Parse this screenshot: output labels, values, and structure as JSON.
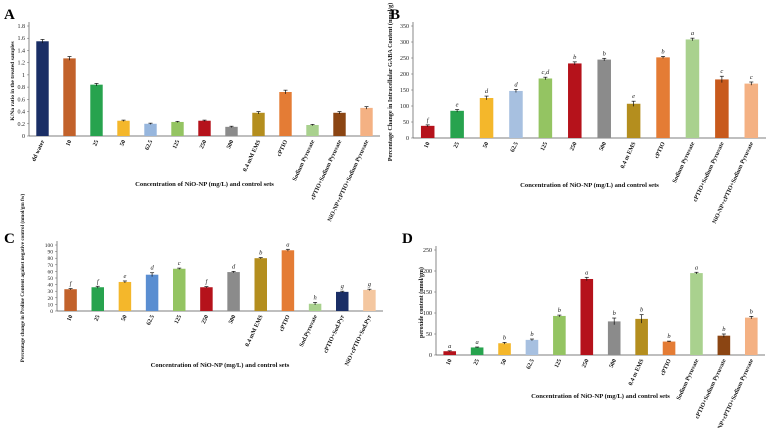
{
  "figure_labels": [
    "A",
    "B",
    "C",
    "D"
  ],
  "chart_data": [
    {
      "panel": "A",
      "type": "bar",
      "title": "",
      "xlabel": "Concentration of NiO-NP (mg/L) and control sets",
      "ylabel": "K/Na ratio in the treated samples",
      "ylim": [
        0,
        1.8
      ],
      "yticks": [
        0,
        0.2,
        0.4,
        0.6,
        0.8,
        1,
        1.2,
        1.4,
        1.6,
        1.8
      ],
      "ytick_labels": [
        "0",
        "0.2",
        "0.4",
        "0.6",
        "0.8",
        "1",
        "1.2",
        "1.4",
        "1.6",
        "1.8"
      ],
      "categories": [
        "dd water",
        "10",
        "25",
        "50",
        "62.5",
        "125",
        "250",
        "500",
        "0.4 mM EMS",
        "cPTIO",
        "Sodium Pyruvate",
        "cPTIO+Sodium Pyruvate",
        "NiO-NP+cPTIO+Sodium Pyruvate"
      ],
      "values": [
        1.55,
        1.27,
        0.84,
        0.25,
        0.2,
        0.23,
        0.25,
        0.15,
        0.38,
        0.72,
        0.18,
        0.38,
        0.46
      ],
      "errors": [
        0.03,
        0.03,
        0.02,
        0.01,
        0.01,
        0.01,
        0.01,
        0.01,
        0.02,
        0.03,
        0.01,
        0.02,
        0.02
      ],
      "letters": [
        "",
        "",
        "",
        "",
        "",
        "",
        "",
        "",
        "",
        "",
        "",
        "",
        ""
      ],
      "colors": [
        "#1a2e66",
        "#c2622b",
        "#27a34e",
        "#f4b72b",
        "#97b6dd",
        "#94c462",
        "#b5121b",
        "#8b8b8b",
        "#b48e1e",
        "#e47c35",
        "#a9d18e",
        "#8b4513",
        "#f4b183"
      ]
    },
    {
      "panel": "B",
      "type": "bar",
      "title": "",
      "xlabel": "Concentration of NiO-NP (mg/L) and control sets",
      "ylabel": "Percentage Change in Intracellular GABA Content (nmol/g)",
      "ylim": [
        0,
        350
      ],
      "yticks": [
        0,
        50,
        100,
        150,
        200,
        250,
        300,
        350
      ],
      "ytick_labels": [
        "0",
        "50",
        "100",
        "150",
        "200",
        "250",
        "300",
        "350"
      ],
      "categories": [
        "10",
        "25",
        "50",
        "62.5",
        "125",
        "250",
        "500",
        "0.4 m EMS",
        "cPTIO",
        "Sodium Pyruvate",
        "cPTIO+Sodium Pyruvate",
        "NiO-NP+cPTIO+Sodium Pyruvate"
      ],
      "values": [
        38,
        85,
        125,
        147,
        186,
        233,
        245,
        107,
        252,
        308,
        183,
        170
      ],
      "errors": [
        3,
        4,
        6,
        5,
        4,
        5,
        4,
        8,
        3,
        4,
        10,
        5
      ],
      "letters": [
        "f",
        "e",
        "d",
        "d",
        "c,d",
        "b",
        "b",
        "e",
        "b",
        "a",
        "c",
        "c"
      ],
      "colors": [
        "#b5121b",
        "#27a34e",
        "#f4b72b",
        "#a7c0e0",
        "#94c462",
        "#b5121b",
        "#8b8b8b",
        "#b48e1e",
        "#e47c35",
        "#a9d18e",
        "#c85a1c",
        "#f4b183"
      ]
    },
    {
      "panel": "C",
      "type": "bar",
      "title": "",
      "xlabel": "Concentration of NiO-NP (mg/L) and control sets",
      "ylabel": "Percentage change in Proline Content against negative control (nmol/gm fw)",
      "ylim": [
        0,
        100
      ],
      "yticks": [
        0,
        10,
        20,
        30,
        40,
        50,
        60,
        70,
        80,
        90,
        100
      ],
      "ytick_labels": [
        "0",
        "10",
        "20",
        "30",
        "40",
        "50",
        "60",
        "70",
        "80",
        "90",
        "100"
      ],
      "categories": [
        "10",
        "25",
        "50",
        "62.5",
        "125",
        "250",
        "500",
        "0.4 mM EMS",
        "cPTIO",
        "Sod.Pyruvate",
        "cPTIO+Sod.Pyr",
        "NiO+cPTIO+Sod.Pyr"
      ],
      "values": [
        33,
        36,
        44,
        55,
        64,
        36,
        59,
        80,
        92,
        11,
        29,
        32
      ],
      "errors": [
        1,
        1.5,
        1.5,
        3,
        1,
        1,
        1,
        1,
        1.5,
        2,
        1,
        1
      ],
      "letters": [
        "f",
        "f",
        "e",
        "d",
        "c",
        "f",
        "d",
        "b",
        "a",
        "h",
        "g",
        "g"
      ],
      "colors": [
        "#c2622b",
        "#27a34e",
        "#f4b72b",
        "#5a8ed1",
        "#94c462",
        "#b5121b",
        "#8b8b8b",
        "#b48e1e",
        "#e47c35",
        "#a9d18e",
        "#1a2e66",
        "#f4c7a0"
      ]
    },
    {
      "panel": "D",
      "type": "bar",
      "title": "",
      "xlabel": "Concentration of NiO-NP (mg/L) and control sets",
      "ylabel": "peroxide content (nmol/gm)",
      "ylim": [
        0,
        250
      ],
      "yticks": [
        0,
        50,
        100,
        150,
        200,
        250
      ],
      "ytick_labels": [
        "0",
        "50",
        "100",
        "150",
        "200",
        "250"
      ],
      "categories": [
        "10",
        "25",
        "50",
        "62.5",
        "125",
        "250",
        "500",
        "0.4 m EMS",
        "cPTIO",
        "Sodium Pyruvate",
        "cPTIO+Sodium Pyruvate",
        "NiO-NP+cPTIO+Sodium Pyruvate"
      ],
      "values": [
        9,
        18,
        28,
        36,
        93,
        181,
        80,
        86,
        32,
        195,
        46,
        89
      ],
      "errors": [
        1,
        1,
        2,
        2,
        2,
        4,
        8,
        10,
        1,
        2,
        4,
        3
      ],
      "letters": [
        "a",
        "a",
        "b",
        "b",
        "b",
        "a",
        "b",
        "b",
        "b",
        "a",
        "b",
        "b"
      ],
      "colors": [
        "#b5121b",
        "#27a34e",
        "#f4b72b",
        "#a7c0e0",
        "#94c462",
        "#b5121b",
        "#8b8b8b",
        "#b48e1e",
        "#e47c35",
        "#a9d18e",
        "#8b4513",
        "#f4b183"
      ]
    }
  ]
}
